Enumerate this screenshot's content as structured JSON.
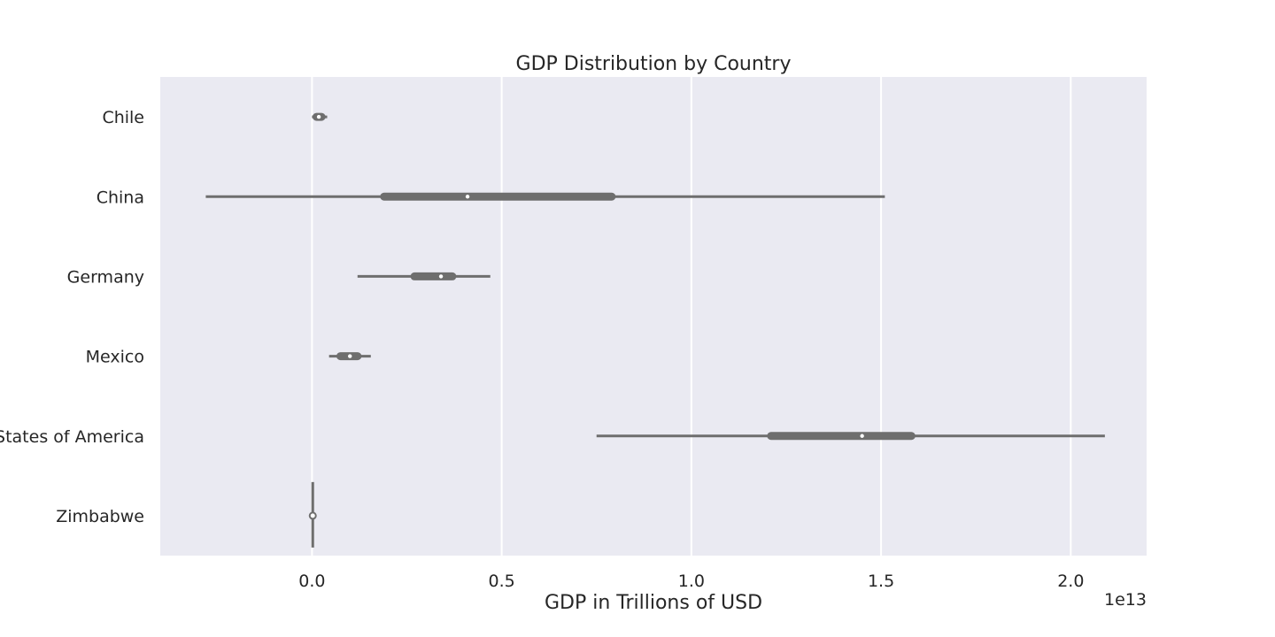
{
  "chart_data": {
    "type": "violin",
    "orientation": "horizontal",
    "title": "GDP Distribution by Country",
    "xlabel": "GDP in Trillions of USD",
    "ylabel": "",
    "x_offset_label": "1e13",
    "xlim": [
      -4000000000000.0,
      22000000000000.0
    ],
    "x_ticks": [
      0.0,
      5000000000000.0,
      10000000000000.0,
      15000000000000.0,
      20000000000000.0
    ],
    "x_tick_labels": [
      "0.0",
      "0.5",
      "1.0",
      "1.5",
      "2.0"
    ],
    "grid": true,
    "categories": [
      "Chile",
      "China",
      "Germany",
      "Mexico",
      "States of America",
      "Zimbabwe"
    ],
    "series": [
      {
        "category": "Chile",
        "min": 0.0,
        "q1": 120000000000.0,
        "median": 180000000000.0,
        "q3": 250000000000.0,
        "max": 400000000000.0
      },
      {
        "category": "China",
        "min": -2800000000000.0,
        "q1": 1900000000000.0,
        "median": 4100000000000.0,
        "q3": 7900000000000.0,
        "max": 15100000000000.0
      },
      {
        "category": "Germany",
        "min": 1200000000000.0,
        "q1": 2700000000000.0,
        "median": 3400000000000.0,
        "q3": 3700000000000.0,
        "max": 4700000000000.0
      },
      {
        "category": "Mexico",
        "min": 450000000000.0,
        "q1": 750000000000.0,
        "median": 1000000000000.0,
        "q3": 1200000000000.0,
        "max": 1550000000000.0
      },
      {
        "category": "States of America",
        "min": 7500000000000.0,
        "q1": 12100000000000.0,
        "median": 14500000000000.0,
        "q3": 15800000000000.0,
        "max": 20900000000000.0
      },
      {
        "category": "Zimbabwe",
        "min": 0.0,
        "q1": 0.0,
        "median": 20000000000.0,
        "q3": 40000000000.0,
        "max": 60000000000.0
      }
    ],
    "colors": {
      "plot_background": "#eaeaf2",
      "grid": "#ffffff",
      "violin": "#6e6e6e",
      "median": "#ffffff",
      "text": "#262626"
    }
  }
}
